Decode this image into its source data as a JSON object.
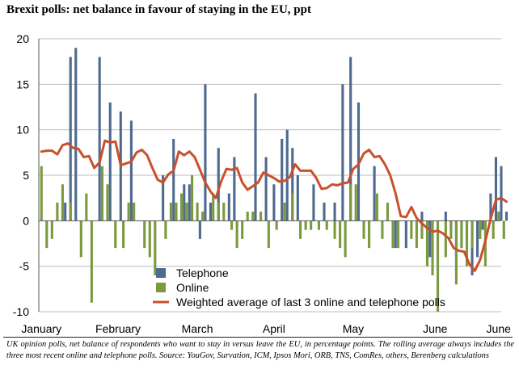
{
  "title": "Brexit polls: net balance in favour of staying in the EU, ppt",
  "source_note": "UK opinion polls, net balance of respondents who want to stay in versus leave the EU, in percentage points. The rolling average always includes the three most recent online and telephone polls. Source: YouGov, Survation, ICM, Ipsos Mori, ORB, TNS, ComRes, others, Berenberg calculations",
  "chart_data": {
    "type": "bar",
    "title": "Brexit polls: net balance in favour of staying in the EU, ppt",
    "xlabel": "",
    "ylabel": "",
    "ylim": [
      -10,
      20
    ],
    "yticks": [
      20,
      15,
      10,
      5,
      0,
      -5,
      -10
    ],
    "xlim": [
      0,
      175
    ],
    "x_tick_labels": [
      {
        "label": "January",
        "x": 1
      },
      {
        "label": "February",
        "x": 30
      },
      {
        "label": "March",
        "x": 60
      },
      {
        "label": "April",
        "x": 89
      },
      {
        "label": "May",
        "x": 119
      },
      {
        "label": "June",
        "x": 150
      },
      {
        "label": "June",
        "x": 174
      }
    ],
    "grid": "horizontal",
    "legend_position": "bottom-center",
    "series": [
      {
        "name": "Telephone",
        "kind": "bar",
        "color": "#4f6a8f",
        "points": [
          [
            10,
            2
          ],
          [
            12,
            18
          ],
          [
            14,
            19
          ],
          [
            23,
            18
          ],
          [
            27,
            13
          ],
          [
            31,
            12
          ],
          [
            35,
            11
          ],
          [
            47,
            5
          ],
          [
            51,
            9
          ],
          [
            55,
            4
          ],
          [
            57,
            4
          ],
          [
            61,
            -2
          ],
          [
            63,
            15
          ],
          [
            65,
            2
          ],
          [
            68,
            8
          ],
          [
            72,
            3
          ],
          [
            74,
            7
          ],
          [
            82,
            14
          ],
          [
            86,
            7
          ],
          [
            89,
            4
          ],
          [
            92,
            9
          ],
          [
            94,
            10
          ],
          [
            96,
            8
          ],
          [
            98,
            5
          ],
          [
            104,
            4
          ],
          [
            108,
            2
          ],
          [
            112,
            2
          ],
          [
            115,
            15
          ],
          [
            118,
            18
          ],
          [
            121,
            13
          ],
          [
            127,
            6
          ],
          [
            135,
            -3
          ],
          [
            139,
            -3
          ],
          [
            145,
            1
          ],
          [
            148,
            -4
          ],
          [
            154,
            1
          ],
          [
            156,
            -1
          ],
          [
            158,
            -4
          ],
          [
            160,
            -3
          ],
          [
            162,
            -2
          ],
          [
            164,
            -6
          ],
          [
            166,
            -4
          ],
          [
            168,
            -1
          ],
          [
            171,
            3
          ],
          [
            173,
            7
          ],
          [
            175,
            6
          ],
          [
            177,
            1
          ]
        ]
      },
      {
        "name": "Online",
        "kind": "bar",
        "color": "#7a9a3d",
        "points": [
          [
            1,
            6
          ],
          [
            3,
            -3
          ],
          [
            5,
            -2
          ],
          [
            7,
            2
          ],
          [
            9,
            4
          ],
          [
            12,
            2
          ],
          [
            16,
            -4
          ],
          [
            18,
            3
          ],
          [
            20,
            -9
          ],
          [
            24,
            6
          ],
          [
            26,
            4
          ],
          [
            29,
            -3
          ],
          [
            32,
            -3
          ],
          [
            34,
            2
          ],
          [
            36,
            2
          ],
          [
            38,
            0
          ],
          [
            40,
            -3
          ],
          [
            42,
            -4
          ],
          [
            44,
            -6
          ],
          [
            48,
            -2
          ],
          [
            50,
            2
          ],
          [
            52,
            2
          ],
          [
            54,
            3
          ],
          [
            56,
            2
          ],
          [
            58,
            5
          ],
          [
            60,
            2
          ],
          [
            62,
            1
          ],
          [
            66,
            3
          ],
          [
            68,
            2
          ],
          [
            70,
            2
          ],
          [
            73,
            -1
          ],
          [
            75,
            -3
          ],
          [
            77,
            -2
          ],
          [
            79,
            1
          ],
          [
            81,
            1
          ],
          [
            84,
            1
          ],
          [
            87,
            -3
          ],
          [
            90,
            -1
          ],
          [
            93,
            2
          ],
          [
            96,
            3
          ],
          [
            99,
            -2
          ],
          [
            101,
            -1
          ],
          [
            103,
            -1
          ],
          [
            106,
            -1
          ],
          [
            109,
            -1
          ],
          [
            112,
            -2
          ],
          [
            114,
            -3
          ],
          [
            116,
            -4
          ],
          [
            118,
            4
          ],
          [
            120,
            4
          ],
          [
            123,
            -2
          ],
          [
            125,
            -3
          ],
          [
            128,
            3
          ],
          [
            130,
            -2
          ],
          [
            132,
            2
          ],
          [
            134,
            -3
          ],
          [
            136,
            -3
          ],
          [
            141,
            -2
          ],
          [
            143,
            -3
          ],
          [
            145,
            -2
          ],
          [
            147,
            -5
          ],
          [
            149,
            -6
          ],
          [
            151,
            -10
          ],
          [
            154,
            -4
          ],
          [
            156,
            -2
          ],
          [
            158,
            -7
          ],
          [
            160,
            -3
          ],
          [
            162,
            -5
          ],
          [
            164,
            -3
          ],
          [
            167,
            -2
          ],
          [
            169,
            -5
          ],
          [
            172,
            -2
          ],
          [
            174,
            1
          ],
          [
            176,
            -2
          ]
        ]
      },
      {
        "name": "Weighted average of last 3 online and telephone polls",
        "kind": "line",
        "color": "#c9502b",
        "points": [
          [
            1,
            7.6
          ],
          [
            3,
            7.7
          ],
          [
            5,
            7.7
          ],
          [
            7,
            7.3
          ],
          [
            9,
            8.3
          ],
          [
            11,
            8.5
          ],
          [
            13,
            8.0
          ],
          [
            15,
            7.9
          ],
          [
            17,
            7.0
          ],
          [
            19,
            7.1
          ],
          [
            21,
            5.8
          ],
          [
            23,
            6.4
          ],
          [
            25,
            8.8
          ],
          [
            27,
            8.6
          ],
          [
            29,
            8.7
          ],
          [
            31,
            6.1
          ],
          [
            33,
            6.3
          ],
          [
            35,
            6.5
          ],
          [
            37,
            7.5
          ],
          [
            39,
            7.8
          ],
          [
            41,
            7.2
          ],
          [
            43,
            5.8
          ],
          [
            45,
            4.5
          ],
          [
            47,
            4.2
          ],
          [
            49,
            5.1
          ],
          [
            51,
            5.5
          ],
          [
            53,
            7.6
          ],
          [
            55,
            7.2
          ],
          [
            57,
            7.6
          ],
          [
            59,
            7.0
          ],
          [
            61,
            5.6
          ],
          [
            63,
            4.2
          ],
          [
            65,
            3.2
          ],
          [
            67,
            2.5
          ],
          [
            69,
            4.3
          ],
          [
            71,
            5.7
          ],
          [
            73,
            5.6
          ],
          [
            75,
            5.8
          ],
          [
            77,
            4.2
          ],
          [
            79,
            3.4
          ],
          [
            81,
            3.8
          ],
          [
            83,
            4.2
          ],
          [
            85,
            5.3
          ],
          [
            87,
            5.0
          ],
          [
            89,
            4.7
          ],
          [
            91,
            4.3
          ],
          [
            93,
            4.4
          ],
          [
            95,
            4.8
          ],
          [
            97,
            6.2
          ],
          [
            99,
            5.5
          ],
          [
            101,
            5.5
          ],
          [
            103,
            5.5
          ],
          [
            105,
            4.7
          ],
          [
            107,
            3.5
          ],
          [
            109,
            3.6
          ],
          [
            111,
            4.0
          ],
          [
            113,
            3.9
          ],
          [
            115,
            4.1
          ],
          [
            117,
            4.2
          ],
          [
            119,
            5.7
          ],
          [
            121,
            6.2
          ],
          [
            123,
            7.4
          ],
          [
            125,
            7.8
          ],
          [
            127,
            7.0
          ],
          [
            129,
            7.1
          ],
          [
            131,
            6.2
          ],
          [
            133,
            5.0
          ],
          [
            135,
            3.0
          ],
          [
            137,
            0.5
          ],
          [
            139,
            0.4
          ],
          [
            141,
            1.5
          ],
          [
            143,
            0.3
          ],
          [
            145,
            -0.3
          ],
          [
            147,
            -0.8
          ],
          [
            149,
            -1.2
          ],
          [
            151,
            -1.1
          ],
          [
            153,
            -1.4
          ],
          [
            155,
            -1.9
          ],
          [
            157,
            -3.0
          ],
          [
            159,
            -3.3
          ],
          [
            161,
            -3.4
          ],
          [
            163,
            -4.8
          ],
          [
            165,
            -5.5
          ],
          [
            167,
            -4.3
          ],
          [
            169,
            -2.2
          ],
          [
            171,
            0.2
          ],
          [
            173,
            2.3
          ],
          [
            175,
            2.5
          ],
          [
            177,
            2.1
          ]
        ]
      }
    ]
  }
}
